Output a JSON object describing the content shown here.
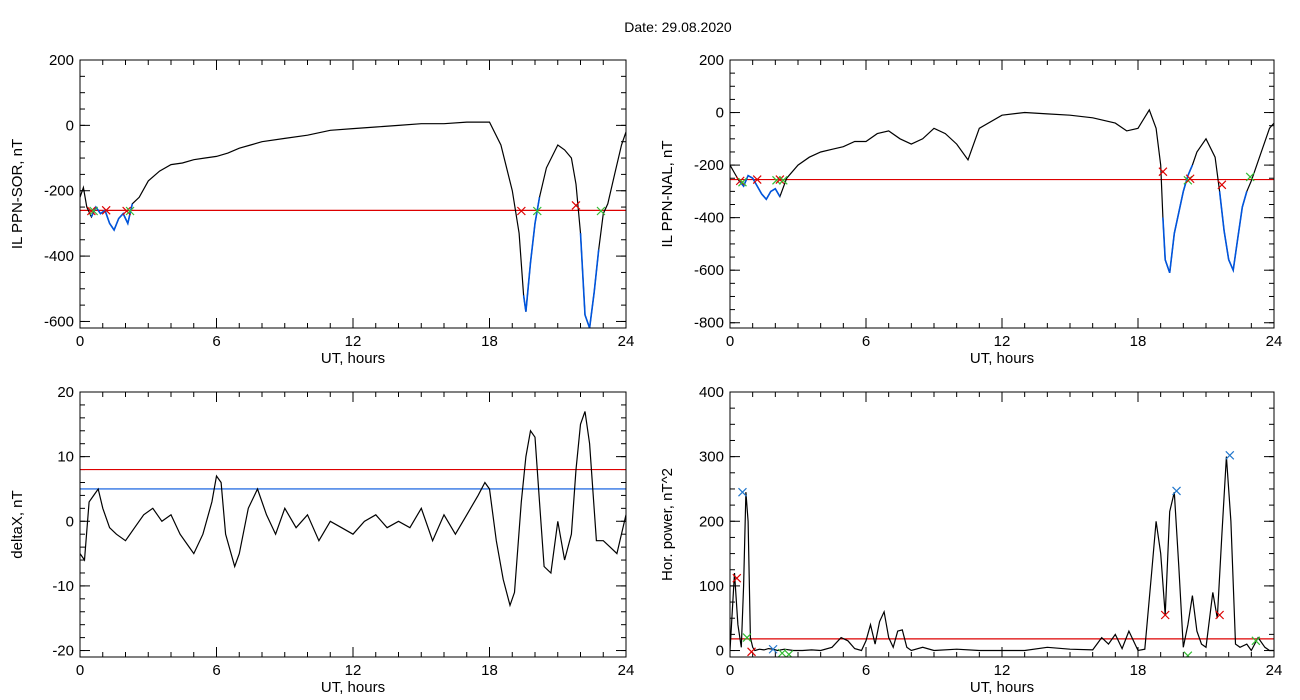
{
  "header": {
    "date_text": "Date:  29.08.2020"
  },
  "colors": {
    "curve": "#000000",
    "threshold": "#dd0000",
    "highlight": "#0055dd",
    "level2": "#0055dd",
    "mark_red": "#dd0000",
    "mark_green": "#33bb33",
    "mark_blue": "#2277cc"
  },
  "chart_data": [
    {
      "type": "line",
      "xlabel": "UT, hours",
      "ylabel": "IL PPN-SOR, nT",
      "xlim": [
        0,
        24
      ],
      "ylim": [
        -620,
        200
      ],
      "xticks": [
        0,
        6,
        12,
        18,
        24
      ],
      "yticks": [
        -600,
        -400,
        -200,
        0,
        200
      ],
      "x_minor": 1,
      "y_minor": 50,
      "thresholds": [
        {
          "value": -260,
          "color": "red"
        }
      ],
      "series": [
        {
          "x": [
            0,
            0.15,
            0.3,
            0.5,
            0.7,
            0.9,
            1.1,
            1.3,
            1.5,
            1.7,
            1.9,
            2.1,
            2.3,
            2.6,
            3,
            3.5,
            4,
            4.5,
            5,
            5.5,
            6,
            6.5,
            7,
            7.5,
            8,
            9,
            10,
            11,
            12,
            13,
            14,
            15,
            16,
            17,
            18,
            18.5,
            19,
            19.3,
            19.5,
            19.6,
            19.8,
            20,
            20.2,
            20.5,
            21,
            21.3,
            21.6,
            21.8,
            22,
            22.2,
            22.4,
            22.6,
            22.8,
            23,
            23.2,
            23.5,
            23.8,
            24
          ],
          "y": [
            -220,
            -190,
            -250,
            -280,
            -250,
            -270,
            -260,
            -300,
            -320,
            -285,
            -270,
            -300,
            -240,
            -220,
            -170,
            -140,
            -120,
            -115,
            -105,
            -100,
            -95,
            -85,
            -70,
            -60,
            -50,
            -40,
            -30,
            -15,
            -10,
            -5,
            0,
            5,
            5,
            10,
            10,
            -60,
            -200,
            -330,
            -520,
            -570,
            -420,
            -300,
            -220,
            -130,
            -60,
            -75,
            -100,
            -180,
            -330,
            -580,
            -620,
            -510,
            -380,
            -270,
            -240,
            -150,
            -60,
            -20
          ]
        }
      ],
      "highlight_ranges": [
        [
          0.4,
          2.3
        ],
        [
          19.5,
          20.2
        ],
        [
          21.9,
          22.8
        ]
      ],
      "markers": [
        {
          "x": 0.5,
          "y": -262,
          "color": "red"
        },
        {
          "x": 0.6,
          "y": -262,
          "color": "green"
        },
        {
          "x": 1.15,
          "y": -260,
          "color": "red"
        },
        {
          "x": 2.05,
          "y": -262,
          "color": "red"
        },
        {
          "x": 2.2,
          "y": -262,
          "color": "green"
        },
        {
          "x": 19.4,
          "y": -262,
          "color": "red"
        },
        {
          "x": 20.1,
          "y": -262,
          "color": "green"
        },
        {
          "x": 21.8,
          "y": -245,
          "color": "red"
        },
        {
          "x": 22.9,
          "y": -262,
          "color": "green"
        }
      ]
    },
    {
      "type": "line",
      "xlabel": "UT, hours",
      "ylabel": "IL PPN-NAL, nT",
      "xlim": [
        0,
        24
      ],
      "ylim": [
        -820,
        200
      ],
      "xticks": [
        0,
        6,
        12,
        18,
        24
      ],
      "yticks": [
        -800,
        -600,
        -400,
        -200,
        0,
        200
      ],
      "x_minor": 1,
      "y_minor": 50,
      "thresholds": [
        {
          "value": -255,
          "color": "red"
        }
      ],
      "series": [
        {
          "x": [
            0,
            0.2,
            0.4,
            0.6,
            0.8,
            1,
            1.2,
            1.4,
            1.6,
            1.8,
            2,
            2.2,
            2.5,
            3,
            3.5,
            4,
            4.5,
            5,
            5.5,
            6,
            6.5,
            7,
            7.5,
            8,
            8.5,
            9,
            9.5,
            10,
            10.5,
            11,
            12,
            13,
            14,
            15,
            16,
            17,
            17.5,
            18,
            18.5,
            18.8,
            19,
            19.1,
            19.2,
            19.4,
            19.6,
            19.8,
            20,
            20.2,
            20.4,
            20.6,
            21,
            21.4,
            21.6,
            21.8,
            22,
            22.2,
            22.4,
            22.6,
            22.8,
            23,
            23.4,
            23.8,
            24
          ],
          "y": [
            -200,
            -230,
            -260,
            -280,
            -240,
            -250,
            -280,
            -310,
            -330,
            -300,
            -290,
            -320,
            -250,
            -200,
            -170,
            -150,
            -140,
            -130,
            -110,
            -110,
            -80,
            -70,
            -100,
            -120,
            -100,
            -60,
            -80,
            -120,
            -180,
            -60,
            -10,
            0,
            -5,
            -10,
            -20,
            -40,
            -70,
            -60,
            10,
            -60,
            -200,
            -400,
            -560,
            -610,
            -460,
            -380,
            -300,
            -240,
            -200,
            -150,
            -100,
            -170,
            -300,
            -450,
            -560,
            -600,
            -480,
            -360,
            -300,
            -260,
            -160,
            -60,
            -40
          ]
        }
      ],
      "highlight_ranges": [
        [
          0.4,
          2.4
        ],
        [
          19.1,
          20.4
        ],
        [
          21.5,
          22.8
        ]
      ],
      "markers": [
        {
          "x": 0.45,
          "y": -260,
          "color": "red"
        },
        {
          "x": 0.55,
          "y": -265,
          "color": "green"
        },
        {
          "x": 1.2,
          "y": -255,
          "color": "red"
        },
        {
          "x": 2.05,
          "y": -258,
          "color": "green"
        },
        {
          "x": 2.2,
          "y": -255,
          "color": "red"
        },
        {
          "x": 2.35,
          "y": -258,
          "color": "green"
        },
        {
          "x": 19.1,
          "y": -225,
          "color": "red"
        },
        {
          "x": 20.2,
          "y": -258,
          "color": "green"
        },
        {
          "x": 20.3,
          "y": -252,
          "color": "red"
        },
        {
          "x": 21.7,
          "y": -275,
          "color": "red"
        },
        {
          "x": 22.95,
          "y": -245,
          "color": "green"
        }
      ]
    },
    {
      "type": "line",
      "xlabel": "UT, hours",
      "ylabel": "deltaX, nT",
      "xlim": [
        0,
        24
      ],
      "ylim": [
        -21,
        20
      ],
      "xticks": [
        0,
        6,
        12,
        18,
        24
      ],
      "yticks": [
        -20,
        -10,
        0,
        10,
        20
      ],
      "x_minor": 1,
      "y_minor": 2,
      "thresholds": [
        {
          "value": 8,
          "color": "red"
        },
        {
          "value": 5,
          "color": "blue"
        }
      ],
      "series": [
        {
          "x": [
            0,
            0.2,
            0.4,
            0.6,
            0.8,
            1,
            1.3,
            1.6,
            2,
            2.4,
            2.8,
            3.2,
            3.6,
            4,
            4.4,
            4.8,
            5,
            5.4,
            5.8,
            6,
            6.2,
            6.4,
            6.8,
            7,
            7.4,
            7.8,
            8.2,
            8.6,
            9,
            9.5,
            10,
            10.5,
            11,
            11.5,
            12,
            12.5,
            13,
            13.5,
            14,
            14.5,
            15,
            15.5,
            16,
            16.5,
            17,
            17.5,
            17.8,
            18,
            18.3,
            18.6,
            18.9,
            19.1,
            19.4,
            19.6,
            19.8,
            20,
            20.2,
            20.4,
            20.7,
            21,
            21.3,
            21.6,
            21.8,
            22,
            22.2,
            22.4,
            22.7,
            23,
            23.3,
            23.6,
            24
          ],
          "y": [
            -5,
            -6,
            3,
            4,
            5,
            2,
            -1,
            -2,
            -3,
            -1,
            1,
            2,
            0,
            1,
            -2,
            -4,
            -5,
            -2,
            3,
            7,
            6,
            -2,
            -7,
            -5,
            2,
            5,
            1,
            -2,
            2,
            -1,
            1,
            -3,
            0,
            -1,
            -2,
            0,
            1,
            -1,
            0,
            -1,
            2,
            -3,
            1,
            -2,
            1,
            4,
            6,
            5,
            -3,
            -9,
            -13,
            -11,
            3,
            10,
            14,
            13,
            3,
            -7,
            -8,
            0,
            -6,
            -2,
            8,
            15,
            17,
            12,
            -3,
            -3,
            -4,
            -5,
            1
          ]
        }
      ],
      "highlight_ranges": [],
      "markers": []
    },
    {
      "type": "line",
      "xlabel": "UT, hours",
      "ylabel": "Hor. power, nT^2",
      "xlim": [
        0,
        24
      ],
      "ylim": [
        -10,
        400
      ],
      "xticks": [
        0,
        6,
        12,
        18,
        24
      ],
      "yticks": [
        0,
        100,
        200,
        300,
        400
      ],
      "x_minor": 1,
      "y_minor": 25,
      "thresholds": [
        {
          "value": 18,
          "color": "red"
        }
      ],
      "series": [
        {
          "x": [
            0,
            0.2,
            0.35,
            0.5,
            0.6,
            0.7,
            0.8,
            0.9,
            1,
            1.1,
            1.3,
            1.5,
            1.7,
            1.9,
            2.1,
            2.4,
            2.8,
            3.2,
            3.6,
            4,
            4.5,
            4.9,
            5.2,
            5.5,
            5.8,
            6,
            6.2,
            6.4,
            6.6,
            6.8,
            7,
            7.2,
            7.4,
            7.6,
            7.8,
            8,
            8.5,
            9,
            10,
            11,
            12,
            13,
            14,
            15,
            16,
            16.4,
            16.7,
            17,
            17.3,
            17.6,
            18,
            18.3,
            18.6,
            18.8,
            19,
            19.2,
            19.4,
            19.6,
            19.8,
            20,
            20.2,
            20.4,
            20.6,
            20.8,
            21,
            21.3,
            21.5,
            21.7,
            21.9,
            22.1,
            22.3,
            22.5,
            22.8,
            23,
            23.3,
            23.6,
            23.8,
            24
          ],
          "y": [
            0,
            120,
            40,
            5,
            100,
            245,
            200,
            20,
            5,
            0,
            2,
            1,
            3,
            2,
            0,
            2,
            0,
            0,
            1,
            0,
            5,
            20,
            15,
            3,
            0,
            15,
            40,
            10,
            45,
            60,
            20,
            5,
            30,
            32,
            5,
            0,
            5,
            0,
            2,
            0,
            0,
            0,
            5,
            2,
            1,
            20,
            10,
            25,
            3,
            30,
            0,
            2,
            120,
            200,
            150,
            55,
            215,
            245,
            130,
            5,
            40,
            85,
            30,
            10,
            5,
            90,
            50,
            180,
            300,
            200,
            10,
            5,
            10,
            0,
            20,
            5,
            0,
            0
          ]
        }
      ],
      "highlight_ranges": [],
      "markers": [
        {
          "x": 0.3,
          "y": 112,
          "color": "red"
        },
        {
          "x": 0.55,
          "y": 245,
          "color": "blue"
        },
        {
          "x": 0.75,
          "y": 20,
          "color": "green"
        },
        {
          "x": 0.95,
          "y": -2,
          "color": "red"
        },
        {
          "x": 1.9,
          "y": 2,
          "color": "blue"
        },
        {
          "x": 2.3,
          "y": -4,
          "color": "green"
        },
        {
          "x": 2.6,
          "y": -6,
          "color": "green"
        },
        {
          "x": 19.2,
          "y": 55,
          "color": "red"
        },
        {
          "x": 19.7,
          "y": 247,
          "color": "blue"
        },
        {
          "x": 20.2,
          "y": -8,
          "color": "green"
        },
        {
          "x": 21.6,
          "y": 55,
          "color": "red"
        },
        {
          "x": 22.05,
          "y": 302,
          "color": "blue"
        },
        {
          "x": 23.2,
          "y": 15,
          "color": "green"
        }
      ]
    }
  ]
}
